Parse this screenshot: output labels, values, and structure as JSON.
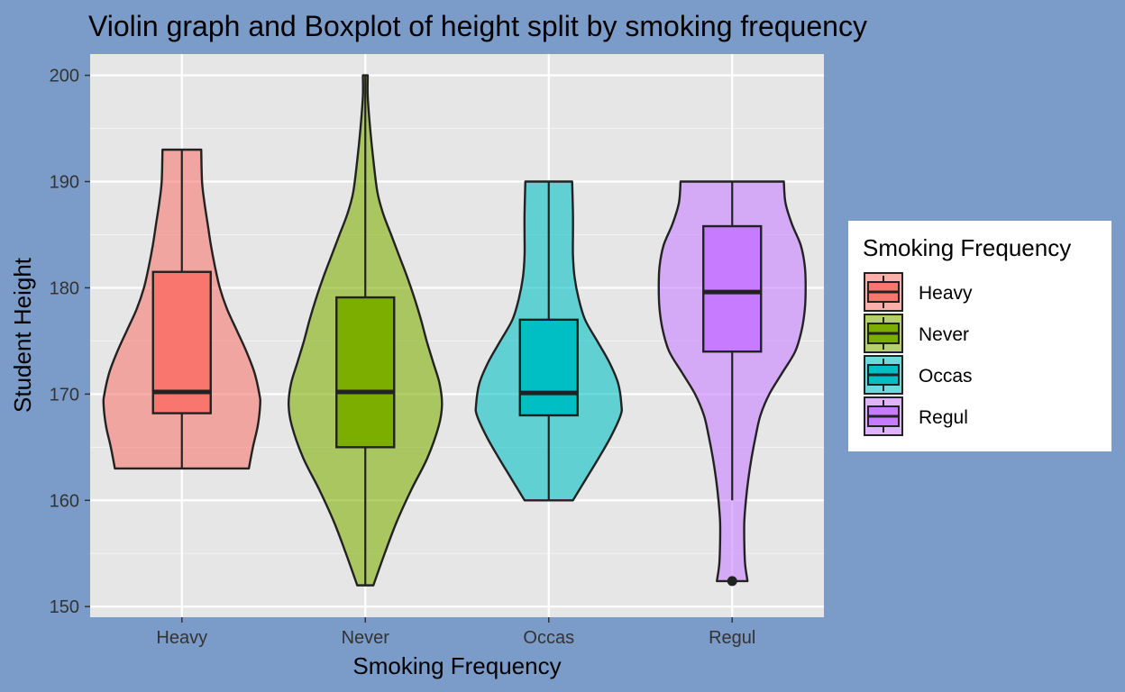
{
  "chart_data": {
    "type": "violin",
    "title": "Violin graph and Boxplot of height split by smoking frequency",
    "xlabel": "Smoking Frequency",
    "ylabel": "Student Height",
    "ylim": [
      149,
      202
    ],
    "yticks": [
      150,
      160,
      170,
      180,
      190,
      200
    ],
    "categories": [
      "Heavy",
      "Never",
      "Occas",
      "Regul"
    ],
    "grid": true,
    "legend": {
      "title": "Smoking Frequency",
      "position": "right",
      "entries": [
        "Heavy",
        "Never",
        "Occas",
        "Regul"
      ]
    },
    "colors": {
      "Heavy": "#F8766D",
      "Never": "#7CAE00",
      "Occas": "#00BFC4",
      "Regul": "#C77CFF",
      "page_background": "#7b9cc8",
      "panel_background": "#e6e6e6"
    },
    "series": [
      {
        "name": "Heavy",
        "box": {
          "min": 163,
          "q1": 168.2,
          "median": 170.2,
          "q3": 181.5,
          "max": 193
        },
        "outliers": [],
        "violin": {
          "ymin": 163,
          "ymax": 193,
          "density": [
            [
              163,
              0.83
            ],
            [
              165,
              0.88
            ],
            [
              167,
              0.94
            ],
            [
              169,
              0.97
            ],
            [
              170,
              0.96
            ],
            [
              172,
              0.9
            ],
            [
              174,
              0.8
            ],
            [
              176,
              0.68
            ],
            [
              178,
              0.56
            ],
            [
              180,
              0.47
            ],
            [
              182,
              0.41
            ],
            [
              184,
              0.36
            ],
            [
              186,
              0.32
            ],
            [
              188,
              0.28
            ],
            [
              190,
              0.25
            ],
            [
              193,
              0.24
            ]
          ]
        }
      },
      {
        "name": "Never",
        "box": {
          "min": 152,
          "q1": 165,
          "median": 170.2,
          "q3": 179.1,
          "max": 200
        },
        "outliers": [],
        "violin": {
          "ymin": 152,
          "ymax": 200,
          "density": [
            [
              152,
              0.1
            ],
            [
              155,
              0.24
            ],
            [
              158,
              0.39
            ],
            [
              161,
              0.57
            ],
            [
              164,
              0.77
            ],
            [
              167,
              0.91
            ],
            [
              169,
              0.95
            ],
            [
              171,
              0.92
            ],
            [
              173,
              0.84
            ],
            [
              175,
              0.76
            ],
            [
              177,
              0.69
            ],
            [
              179,
              0.61
            ],
            [
              181,
              0.52
            ],
            [
              183,
              0.42
            ],
            [
              185,
              0.32
            ],
            [
              187,
              0.22
            ],
            [
              189,
              0.15
            ],
            [
              192,
              0.1
            ],
            [
              195,
              0.06
            ],
            [
              198,
              0.03
            ],
            [
              200,
              0.03
            ]
          ]
        }
      },
      {
        "name": "Occas",
        "box": {
          "min": 160,
          "q1": 168,
          "median": 170.1,
          "q3": 177,
          "max": 190
        },
        "outliers": [],
        "violin": {
          "ymin": 160,
          "ymax": 190,
          "density": [
            [
              160,
              0.3
            ],
            [
              162,
              0.46
            ],
            [
              164,
              0.62
            ],
            [
              166,
              0.77
            ],
            [
              168,
              0.89
            ],
            [
              169,
              0.9
            ],
            [
              171,
              0.86
            ],
            [
              173,
              0.75
            ],
            [
              175,
              0.6
            ],
            [
              177,
              0.45
            ],
            [
              179,
              0.37
            ],
            [
              181,
              0.32
            ],
            [
              183,
              0.3
            ],
            [
              185,
              0.3
            ],
            [
              187,
              0.3
            ],
            [
              190,
              0.29
            ]
          ]
        }
      },
      {
        "name": "Regul",
        "box": {
          "min": 160,
          "q1": 174,
          "median": 179.6,
          "q3": 185.8,
          "max": 190
        },
        "outliers": [
          152.4
        ],
        "violin": {
          "ymin": 152.4,
          "ymax": 190,
          "density": [
            [
              152.4,
              0.19
            ],
            [
              154,
              0.16
            ],
            [
              156,
              0.15
            ],
            [
              158,
              0.15
            ],
            [
              160,
              0.17
            ],
            [
              162,
              0.2
            ],
            [
              164,
              0.24
            ],
            [
              166,
              0.29
            ],
            [
              168,
              0.35
            ],
            [
              170,
              0.46
            ],
            [
              172,
              0.62
            ],
            [
              174,
              0.78
            ],
            [
              176,
              0.86
            ],
            [
              178,
              0.9
            ],
            [
              180,
              0.91
            ],
            [
              182,
              0.9
            ],
            [
              184,
              0.85
            ],
            [
              186,
              0.74
            ],
            [
              188,
              0.66
            ],
            [
              190,
              0.64
            ]
          ]
        }
      }
    ]
  }
}
